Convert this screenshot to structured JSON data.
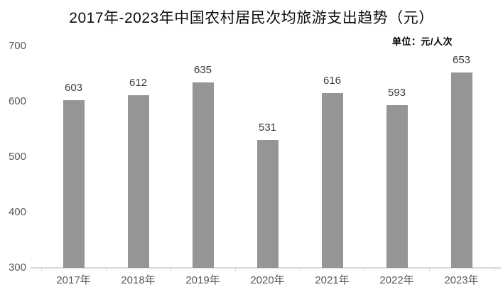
{
  "chart_data": {
    "type": "bar",
    "title": "2017年-2023年中国农村居民次均旅游支出趋势（元）",
    "unit_label": "单位：元/人次",
    "categories": [
      "2017年",
      "2018年",
      "2019年",
      "2020年",
      "2021年",
      "2022年",
      "2023年"
    ],
    "values": [
      603,
      612,
      635,
      531,
      616,
      593,
      653
    ],
    "xlabel": "",
    "ylabel": "",
    "ylim": [
      300,
      700
    ],
    "yticks": [
      700,
      600,
      500,
      400,
      300
    ],
    "grid": false,
    "legend_position": "none",
    "colors": {
      "bar_fill": "#959595",
      "title_text": "#0d0d0d",
      "unit_text": "#000000",
      "value_label_text": "#3a3a3a",
      "axis_tick_text": "#595959",
      "axis_line": "#d9d9d9"
    }
  }
}
